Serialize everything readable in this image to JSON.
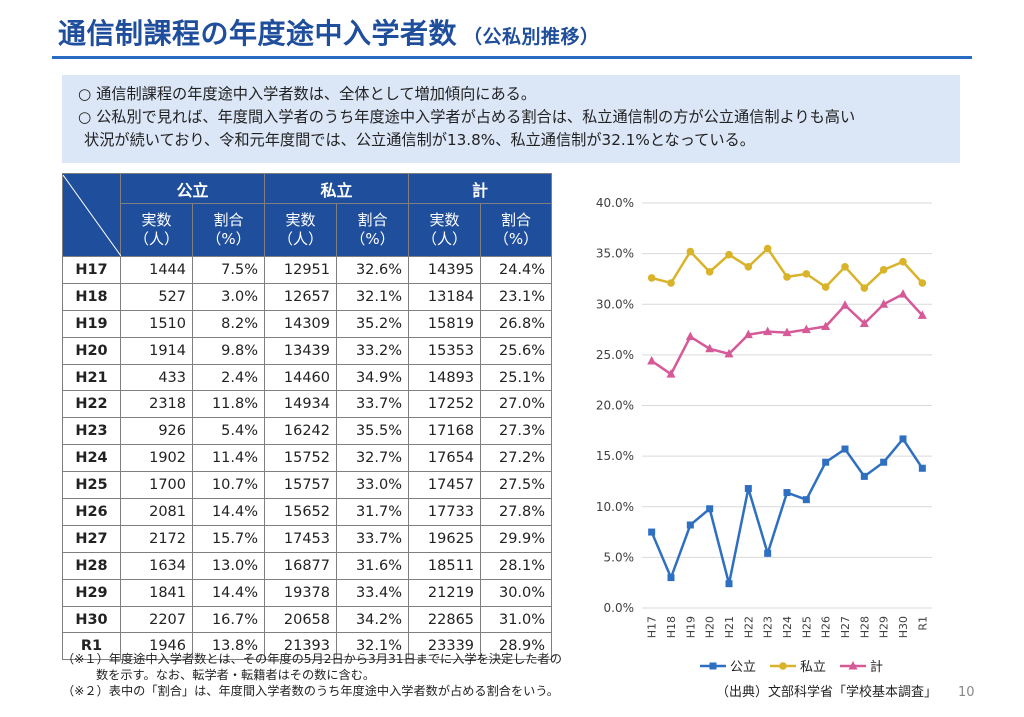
{
  "header": {
    "title": "通信制課程の年度途中入学者数",
    "subtitle": "（公私別推移）"
  },
  "summary": {
    "line1": "○  通信制課程の年度途中入学者数は、全体として増加傾向にある。",
    "line2": "○  公私別で見れば、年度間入学者のうち年度途中入学者が占める割合は、私立通信制の方が公立通信制よりも高い",
    "line3": "状況が続いており、令和元年度間では、公立通信制が13.8%、私立通信制が32.1%となっている。"
  },
  "table": {
    "groups": [
      "公立",
      "私立",
      "計"
    ],
    "sub_count": "実数\n（人）",
    "sub_ratio": "割合\n（%）",
    "rows": [
      [
        "H17",
        "1444",
        "7.5%",
        "12951",
        "32.6%",
        "14395",
        "24.4%"
      ],
      [
        "H18",
        "527",
        "3.0%",
        "12657",
        "32.1%",
        "13184",
        "23.1%"
      ],
      [
        "H19",
        "1510",
        "8.2%",
        "14309",
        "35.2%",
        "15819",
        "26.8%"
      ],
      [
        "H20",
        "1914",
        "9.8%",
        "13439",
        "33.2%",
        "15353",
        "25.6%"
      ],
      [
        "H21",
        "433",
        "2.4%",
        "14460",
        "34.9%",
        "14893",
        "25.1%"
      ],
      [
        "H22",
        "2318",
        "11.8%",
        "14934",
        "33.7%",
        "17252",
        "27.0%"
      ],
      [
        "H23",
        "926",
        "5.4%",
        "16242",
        "35.5%",
        "17168",
        "27.3%"
      ],
      [
        "H24",
        "1902",
        "11.4%",
        "15752",
        "32.7%",
        "17654",
        "27.2%"
      ],
      [
        "H25",
        "1700",
        "10.7%",
        "15757",
        "33.0%",
        "17457",
        "27.5%"
      ],
      [
        "H26",
        "2081",
        "14.4%",
        "15652",
        "31.7%",
        "17733",
        "27.8%"
      ],
      [
        "H27",
        "2172",
        "15.7%",
        "17453",
        "33.7%",
        "19625",
        "29.9%"
      ],
      [
        "H28",
        "1634",
        "13.0%",
        "16877",
        "31.6%",
        "18511",
        "28.1%"
      ],
      [
        "H29",
        "1841",
        "14.4%",
        "19378",
        "33.4%",
        "21219",
        "30.0%"
      ],
      [
        "H30",
        "2207",
        "16.7%",
        "20658",
        "34.2%",
        "22865",
        "31.0%"
      ],
      [
        "R1",
        "1946",
        "13.8%",
        "21393",
        "32.1%",
        "23339",
        "28.9%"
      ]
    ]
  },
  "notes": {
    "note1a": "（※１）年度途中入学者数とは、その年度の5月2日から3月31日までに入学を決定した者の",
    "note1b": "数を示す。なお、転学者・転籍者はその数に含む。",
    "note2": "（※２）表中の「割合」は、年度間入学者数のうち年度途中入学者数が占める割合をいう。"
  },
  "source": "（出典）文部科学省「学校基本調査」",
  "page_number": "10",
  "chart_data": {
    "type": "line",
    "categories": [
      "H17",
      "H18",
      "H19",
      "H20",
      "H21",
      "H22",
      "H23",
      "H24",
      "H25",
      "H26",
      "H27",
      "H28",
      "H29",
      "H30",
      "R1"
    ],
    "series": [
      {
        "name": "公立",
        "color": "#2e6fc1",
        "marker": "square",
        "values": [
          7.5,
          3.0,
          8.2,
          9.8,
          2.4,
          11.8,
          5.4,
          11.4,
          10.7,
          14.4,
          15.7,
          13.0,
          14.4,
          16.7,
          13.8
        ]
      },
      {
        "name": "私立",
        "color": "#d9b32a",
        "marker": "circle",
        "values": [
          32.6,
          32.1,
          35.2,
          33.2,
          34.9,
          33.7,
          35.5,
          32.7,
          33.0,
          31.7,
          33.7,
          31.6,
          33.4,
          34.2,
          32.1
        ]
      },
      {
        "name": "計",
        "color": "#d65a98",
        "marker": "triangle",
        "values": [
          24.4,
          23.1,
          26.8,
          25.6,
          25.1,
          27.0,
          27.3,
          27.2,
          27.5,
          27.8,
          29.9,
          28.1,
          30.0,
          31.0,
          28.9
        ]
      }
    ],
    "ylim": [
      0,
      40
    ],
    "yticks": [
      "0.0%",
      "5.0%",
      "10.0%",
      "15.0%",
      "20.0%",
      "25.0%",
      "30.0%",
      "35.0%",
      "40.0%"
    ],
    "grid": true,
    "legend": "bottom"
  }
}
